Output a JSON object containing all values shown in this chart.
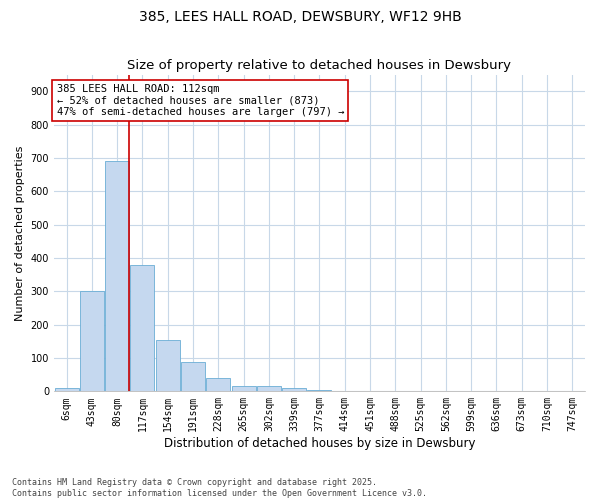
{
  "title": "385, LEES HALL ROAD, DEWSBURY, WF12 9HB",
  "subtitle": "Size of property relative to detached houses in Dewsbury",
  "xlabel": "Distribution of detached houses by size in Dewsbury",
  "ylabel": "Number of detached properties",
  "categories": [
    "6sqm",
    "43sqm",
    "80sqm",
    "117sqm",
    "154sqm",
    "191sqm",
    "228sqm",
    "265sqm",
    "302sqm",
    "339sqm",
    "377sqm",
    "414sqm",
    "451sqm",
    "488sqm",
    "525sqm",
    "562sqm",
    "599sqm",
    "636sqm",
    "673sqm",
    "710sqm",
    "747sqm"
  ],
  "values": [
    10,
    300,
    690,
    380,
    155,
    88,
    40,
    15,
    15,
    10,
    5,
    0,
    0,
    0,
    0,
    0,
    0,
    0,
    0,
    0,
    0
  ],
  "bar_color": "#c5d8ef",
  "bar_edge_color": "#6aadd5",
  "vline_x_idx": 2,
  "vline_color": "#cc0000",
  "annotation_text": "385 LEES HALL ROAD: 112sqm\n← 52% of detached houses are smaller (873)\n47% of semi-detached houses are larger (797) →",
  "annotation_box_facecolor": "#ffffff",
  "annotation_box_edgecolor": "#cc0000",
  "ylim": [
    0,
    950
  ],
  "yticks": [
    0,
    100,
    200,
    300,
    400,
    500,
    600,
    700,
    800,
    900
  ],
  "fig_facecolor": "#ffffff",
  "plot_facecolor": "#ffffff",
  "grid_color": "#c8d8e8",
  "footer_text": "Contains HM Land Registry data © Crown copyright and database right 2025.\nContains public sector information licensed under the Open Government Licence v3.0.",
  "title_fontsize": 10,
  "subtitle_fontsize": 9.5,
  "xlabel_fontsize": 8.5,
  "ylabel_fontsize": 8,
  "tick_fontsize": 7,
  "annotation_fontsize": 7.5,
  "footer_fontsize": 6
}
